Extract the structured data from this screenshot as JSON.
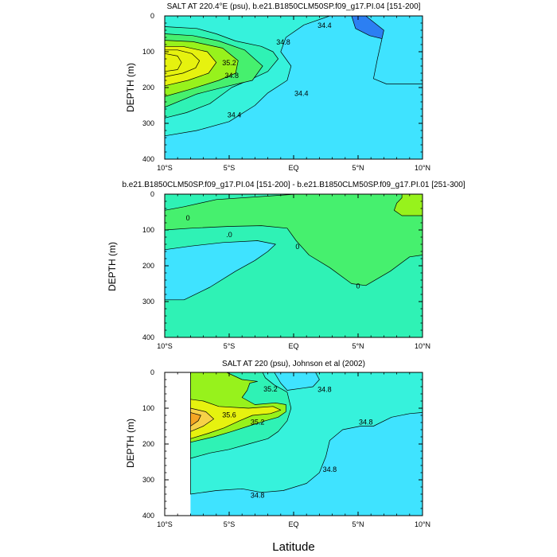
{
  "figure": {
    "xlabel": "Latitude",
    "colors": [
      "#1F45E8",
      "#2C7FF2",
      "#1FBFF5",
      "#3FE3FF",
      "#36F2DC",
      "#2FF2B5",
      "#46F06E",
      "#97F21C",
      "#E6F20F",
      "#F7D247",
      "#F5A623"
    ]
  },
  "chart_data": [
    {
      "type": "contour",
      "title": "SALT AT 220.4°E (psu), b.e21.B1850CLM50SP.f09_g17.PI.04 [151-200]",
      "xlabel": "Latitude",
      "ylabel": "DEPTH (m)",
      "xlim": [
        -10,
        10
      ],
      "ylim": [
        0,
        400
      ],
      "x_ticks": [
        -10,
        -5,
        0,
        5,
        10
      ],
      "x_tick_labels": [
        "10°S",
        "5°S",
        "EQ",
        "5°N",
        "10°N"
      ],
      "y_ticks": [
        0,
        100,
        200,
        300,
        400
      ],
      "y_tick_labels": [
        "0",
        "100",
        "200",
        "300",
        "400"
      ],
      "contour_labels": [
        {
          "text": "34.8",
          "lat": -0.8,
          "depth": 72
        },
        {
          "text": "35.2",
          "lat": -5.0,
          "depth": 130
        },
        {
          "text": "34.8",
          "lat": -4.8,
          "depth": 165
        },
        {
          "text": "34.4",
          "lat": 0.6,
          "depth": 215
        },
        {
          "text": "34.4",
          "lat": -4.6,
          "depth": 275
        },
        {
          "text": "34.4",
          "lat": 2.4,
          "depth": 25
        }
      ],
      "regions": [
        {
          "level": 34.0,
          "points": [
            [
              10,
              0
            ],
            [
              4.5,
              0
            ],
            [
              4.8,
              35
            ],
            [
              5.9,
              55
            ],
            [
              7.6,
              70
            ],
            [
              10,
              75
            ]
          ]
        },
        {
          "level": 34.4,
          "points": [
            [
              10,
              190
            ],
            [
              7.2,
              190
            ],
            [
              6.2,
              175
            ],
            [
              6.5,
              120
            ],
            [
              7.0,
              40
            ],
            [
              5.6,
              0
            ],
            [
              10,
              0
            ]
          ]
        },
        {
          "level": 34.8,
          "points": [
            [
              -10,
              335
            ],
            [
              -7.5,
              320
            ],
            [
              -5.0,
              295
            ],
            [
              -3.0,
              250
            ],
            [
              -2.0,
              215
            ],
            [
              -0.5,
              180
            ],
            [
              -0.2,
              140
            ],
            [
              -1.0,
              100
            ],
            [
              -0.6,
              60
            ],
            [
              0.8,
              25
            ],
            [
              2.8,
              0
            ],
            [
              -10,
              0
            ]
          ]
        },
        {
          "level": 35.2,
          "points": [
            [
              -10,
              285
            ],
            [
              -8.3,
              270
            ],
            [
              -6.5,
              245
            ],
            [
              -4.8,
              200
            ],
            [
              -3.2,
              175
            ],
            [
              -2.0,
              155
            ],
            [
              -1.2,
              120
            ],
            [
              -1.6,
              100
            ],
            [
              -2.5,
              85
            ],
            [
              -4.5,
              70
            ],
            [
              -6.0,
              50
            ],
            [
              -7.5,
              35
            ],
            [
              -10,
              30
            ]
          ]
        },
        {
          "level": 35.6,
          "points": [
            [
              -10,
              255
            ],
            [
              -7.5,
              218
            ],
            [
              -5.0,
              195
            ],
            [
              -3.2,
              180
            ],
            [
              -2.4,
              140
            ],
            [
              -3.8,
              95
            ],
            [
              -5.8,
              70
            ],
            [
              -7.8,
              55
            ],
            [
              -10,
              50
            ]
          ]
        },
        {
          "level": 36.0,
          "points": [
            [
              -10,
              225
            ],
            [
              -8.0,
              205
            ],
            [
              -5.8,
              180
            ],
            [
              -4.5,
              160
            ],
            [
              -4.3,
              125
            ],
            [
              -5.5,
              90
            ],
            [
              -7.8,
              72
            ],
            [
              -10,
              68
            ]
          ]
        },
        {
          "level": 36.4,
          "points": [
            [
              -10,
              195
            ],
            [
              -8.2,
              180
            ],
            [
              -6.6,
              160
            ],
            [
              -6.0,
              130
            ],
            [
              -6.7,
              100
            ],
            [
              -8.6,
              85
            ],
            [
              -10,
              85
            ]
          ]
        },
        {
          "level": 36.8,
          "points": [
            [
              -10,
              170
            ],
            [
              -8.6,
              160
            ],
            [
              -7.6,
              145
            ],
            [
              -7.3,
              125
            ],
            [
              -7.9,
              105
            ],
            [
              -9.0,
              95
            ],
            [
              -10,
              95
            ]
          ]
        },
        {
          "level": 37.2,
          "points": [
            [
              -10,
              155
            ],
            [
              -9.0,
              150
            ],
            [
              -8.7,
              130
            ],
            [
              -9.0,
              112
            ],
            [
              -10,
              105
            ]
          ]
        }
      ]
    },
    {
      "type": "contour",
      "title": "b.e21.B1850CLM50SP.f09_g17.PI.04 [151-200] - b.e21.B1850CLM50SP.f09_g17.PI.01 [251-300]",
      "xlabel": "Latitude",
      "ylabel": "DEPTH (m)",
      "xlim": [
        -10,
        10
      ],
      "ylim": [
        0,
        400
      ],
      "x_ticks": [
        -10,
        -5,
        0,
        5,
        10
      ],
      "x_tick_labels": [
        "10°S",
        "5°S",
        "EQ",
        "5°N",
        "10°N"
      ],
      "y_ticks": [
        0,
        100,
        200,
        300,
        400
      ],
      "y_tick_labels": [
        "0",
        "100",
        "200",
        "300",
        "400"
      ],
      "contour_labels": [
        {
          "text": "0",
          "lat": -8.2,
          "depth": 65
        },
        {
          "text": ".0",
          "lat": -5.0,
          "depth": 112
        },
        {
          "text": "0",
          "lat": 0.3,
          "depth": 145
        },
        {
          "text": "0",
          "lat": 5.0,
          "depth": 255
        }
      ],
      "regions": [
        {
          "level": -0.1,
          "points": [
            [
              -10,
              295
            ],
            [
              -8.5,
              295
            ],
            [
              -6.5,
              260
            ],
            [
              -4.5,
              215
            ],
            [
              -3.0,
              185
            ],
            [
              -2.0,
              160
            ],
            [
              -1.4,
              140
            ],
            [
              -2.8,
              130
            ],
            [
              -5.5,
              135
            ],
            [
              -8.0,
              145
            ],
            [
              -10,
              155
            ]
          ]
        },
        {
          "level": 0.0,
          "points": [
            [
              -10,
              100
            ],
            [
              -8.0,
              95
            ],
            [
              -5.0,
              90
            ],
            [
              -2.5,
              88
            ],
            [
              -0.5,
              95
            ],
            [
              0.2,
              130
            ],
            [
              1.2,
              170
            ],
            [
              2.8,
              205
            ],
            [
              4.5,
              250
            ],
            [
              5.6,
              255
            ],
            [
              7.5,
              215
            ],
            [
              9.0,
              175
            ],
            [
              10,
              170
            ],
            [
              10,
              0
            ],
            [
              0.2,
              0
            ],
            [
              -6.0,
              15
            ],
            [
              -8.5,
              35
            ],
            [
              -10,
              45
            ]
          ]
        },
        {
          "level": 0.1,
          "points": [
            [
              10,
              60
            ],
            [
              8.4,
              60
            ],
            [
              7.8,
              45
            ],
            [
              8.0,
              25
            ],
            [
              8.4,
              10
            ],
            [
              8.4,
              0
            ],
            [
              10,
              0
            ]
          ]
        }
      ]
    },
    {
      "type": "contour",
      "title": "SALT AT 220 (psu), Johnson et al (2002)",
      "xlabel": "Latitude",
      "ylabel": "DEPTH (m)",
      "xlim": [
        -10,
        10
      ],
      "ylim": [
        0,
        400
      ],
      "data_xlim": [
        -8,
        10
      ],
      "x_ticks": [
        -10,
        -5,
        0,
        5,
        10
      ],
      "x_tick_labels": [
        "10°S",
        "5°S",
        "EQ",
        "5°N",
        "10°N"
      ],
      "y_ticks": [
        0,
        100,
        200,
        300,
        400
      ],
      "y_tick_labels": [
        "0",
        "100",
        "200",
        "300",
        "400"
      ],
      "contour_labels": [
        {
          "text": "35.2",
          "lat": -1.8,
          "depth": 45
        },
        {
          "text": "35.6",
          "lat": -5.0,
          "depth": 118
        },
        {
          "text": "35.2",
          "lat": -2.8,
          "depth": 138
        },
        {
          "text": "34.8",
          "lat": 2.4,
          "depth": 47
        },
        {
          "text": "34.8",
          "lat": 5.6,
          "depth": 138
        },
        {
          "text": "34.8",
          "lat": 2.8,
          "depth": 270
        },
        {
          "text": "34.8",
          "lat": -2.8,
          "depth": 342
        }
      ],
      "regions": [
        {
          "level": 34.4,
          "points": [
            [
              10,
              60
            ],
            [
              8.3,
              60
            ],
            [
              7.4,
              55
            ],
            [
              7.2,
              45
            ],
            [
              8.0,
              25
            ],
            [
              8.4,
              0
            ],
            [
              10,
              0
            ]
          ]
        },
        {
          "level": 34.8,
          "points": [
            [
              -8,
              340
            ],
            [
              -6.0,
              330
            ],
            [
              -4.0,
              325
            ],
            [
              -2.5,
              335
            ],
            [
              -0.8,
              330
            ],
            [
              1.0,
              310
            ],
            [
              2.0,
              280
            ],
            [
              2.5,
              235
            ],
            [
              2.8,
              190
            ],
            [
              3.8,
              160
            ],
            [
              5.2,
              150
            ],
            [
              6.2,
              150
            ],
            [
              7.6,
              125
            ],
            [
              9.0,
              115
            ],
            [
              10,
              112
            ],
            [
              10,
              0
            ],
            [
              1.7,
              0
            ],
            [
              2.0,
              20
            ],
            [
              1.5,
              40
            ],
            [
              -0.5,
              50
            ],
            [
              -1.0,
              30
            ],
            [
              -1.5,
              0
            ],
            [
              -8,
              0
            ]
          ]
        },
        {
          "level": 35.2,
          "points": [
            [
              -8,
              240
            ],
            [
              -6.5,
              225
            ],
            [
              -5.0,
              215
            ],
            [
              -3.5,
              200
            ],
            [
              -2.0,
              185
            ],
            [
              -1.2,
              165
            ],
            [
              -0.5,
              135
            ],
            [
              -0.2,
              100
            ],
            [
              -0.5,
              55
            ],
            [
              -1.5,
              35
            ],
            [
              -2.2,
              15
            ],
            [
              -2.4,
              0
            ],
            [
              -8,
              0
            ]
          ]
        },
        {
          "level": 35.6,
          "points": [
            [
              -8,
              195
            ],
            [
              -6.2,
              180
            ],
            [
              -4.8,
              165
            ],
            [
              -3.5,
              150
            ],
            [
              -2.2,
              135
            ],
            [
              -1.2,
              125
            ],
            [
              -0.6,
              110
            ],
            [
              -0.6,
              90
            ],
            [
              -1.4,
              85
            ],
            [
              -3.0,
              90
            ],
            [
              -4.0,
              70
            ],
            [
              -3.6,
              50
            ],
            [
              -3.4,
              30
            ],
            [
              -2.8,
              25
            ],
            [
              -4.0,
              20
            ],
            [
              -5.2,
              0
            ],
            [
              -8,
              0
            ]
          ]
        },
        {
          "level": 36.0,
          "points": [
            [
              -8,
              185
            ],
            [
              -6.6,
              170
            ],
            [
              -5.4,
              155
            ],
            [
              -4.2,
              135
            ],
            [
              -3.2,
              120
            ],
            [
              -1.8,
              115
            ],
            [
              -1.0,
              105
            ],
            [
              -1.6,
              95
            ],
            [
              -3.5,
              100
            ],
            [
              -5.8,
              95
            ],
            [
              -7.0,
              80
            ],
            [
              -8,
              75
            ]
          ]
        },
        {
          "level": 36.4,
          "points": [
            [
              -8,
              165
            ],
            [
              -7.0,
              150
            ],
            [
              -6.2,
              130
            ],
            [
              -6.8,
              110
            ],
            [
              -8,
              100
            ]
          ]
        },
        {
          "level": 36.8,
          "points": [
            [
              -8,
              150
            ],
            [
              -7.4,
              135
            ],
            [
              -7.2,
              120
            ],
            [
              -8,
              112
            ]
          ]
        }
      ]
    }
  ]
}
